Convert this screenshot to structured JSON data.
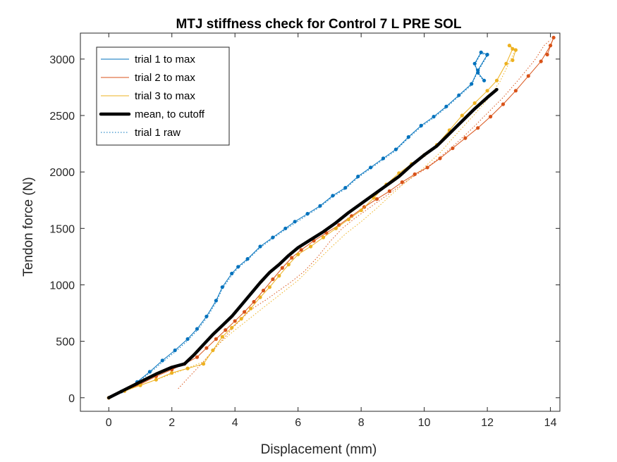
{
  "chart_data": {
    "type": "line",
    "title": "MTJ stiffness check for Control 7 L PRE SOL",
    "xlabel": "Displacement (mm)",
    "ylabel": "Tendon force (N)",
    "xlim": [
      -0.9,
      14.3
    ],
    "ylim": [
      -120,
      3230
    ],
    "xticks": [
      0,
      2,
      4,
      6,
      8,
      10,
      12,
      14
    ],
    "yticks": [
      0,
      500,
      1000,
      1500,
      2000,
      2500,
      3000
    ],
    "grid": false,
    "legend_position": "top-left",
    "colors": {
      "trial1": "#0072BD",
      "trial2": "#D95319",
      "trial3": "#EDB120",
      "mean": "#000000",
      "trial1raw": "#0072BD"
    },
    "series": [
      {
        "name": "trial 1 to max",
        "style": "solid",
        "markers": true,
        "x": [
          0,
          0.4,
          0.9,
          1.3,
          1.7,
          2.1,
          2.5,
          2.8,
          3.1,
          3.4,
          3.6,
          3.9,
          4.1,
          4.4,
          4.8,
          5.2,
          5.6,
          5.9,
          6.3,
          6.7,
          7.1,
          7.5,
          7.9,
          8.3,
          8.7,
          9.1,
          9.5,
          9.9,
          10.3,
          10.7,
          11.1,
          11.5,
          11.7,
          12.0,
          11.8,
          11.6,
          11.7,
          11.9
        ],
        "y": [
          0,
          55,
          140,
          230,
          330,
          420,
          520,
          610,
          720,
          860,
          980,
          1100,
          1160,
          1230,
          1340,
          1420,
          1500,
          1560,
          1630,
          1700,
          1790,
          1860,
          1960,
          2040,
          2120,
          2200,
          2310,
          2410,
          2490,
          2580,
          2680,
          2780,
          2900,
          3040,
          3060,
          2960,
          2880,
          2810
        ]
      },
      {
        "name": "trial 2 to max",
        "style": "solid",
        "markers": true,
        "x": [
          0,
          0.5,
          1.0,
          1.5,
          2.0,
          2.4,
          2.8,
          3.1,
          3.4,
          3.7,
          4.0,
          4.3,
          4.6,
          4.9,
          5.2,
          5.5,
          5.8,
          6.1,
          6.5,
          6.9,
          7.3,
          7.7,
          8.1,
          8.5,
          8.9,
          9.3,
          9.7,
          10.1,
          10.5,
          10.9,
          11.3,
          11.7,
          12.1,
          12.5,
          12.9,
          13.3,
          13.7,
          14.0,
          14.1,
          13.9
        ],
        "y": [
          0,
          60,
          120,
          190,
          250,
          300,
          360,
          440,
          520,
          600,
          680,
          760,
          850,
          950,
          1050,
          1150,
          1240,
          1310,
          1390,
          1460,
          1530,
          1610,
          1690,
          1760,
          1830,
          1910,
          1980,
          2040,
          2120,
          2210,
          2300,
          2390,
          2490,
          2600,
          2720,
          2850,
          2980,
          3120,
          3190,
          3040
        ]
      },
      {
        "name": "trial 3 to max",
        "style": "solid",
        "markers": true,
        "x": [
          0,
          0.5,
          1.0,
          1.5,
          2.0,
          2.5,
          3.0,
          3.3,
          3.6,
          3.9,
          4.2,
          4.5,
          4.8,
          5.1,
          5.4,
          5.7,
          6.0,
          6.4,
          6.8,
          7.2,
          7.6,
          8.0,
          8.4,
          8.8,
          9.2,
          9.6,
          10.0,
          10.4,
          10.8,
          11.2,
          11.6,
          12.0,
          12.3,
          12.6,
          12.8,
          12.7,
          12.9,
          12.8
        ],
        "y": [
          0,
          60,
          110,
          160,
          220,
          260,
          300,
          420,
          540,
          620,
          700,
          790,
          890,
          980,
          1080,
          1180,
          1270,
          1340,
          1420,
          1500,
          1580,
          1660,
          1770,
          1890,
          1990,
          2070,
          2150,
          2240,
          2370,
          2500,
          2610,
          2720,
          2810,
          2960,
          3090,
          3120,
          3080,
          2990
        ]
      },
      {
        "name": "mean, to cutoff",
        "style": "thick",
        "markers": false,
        "x": [
          0,
          0.5,
          1.0,
          1.5,
          2.0,
          2.4,
          2.7,
          3.0,
          3.3,
          3.6,
          3.9,
          4.2,
          4.5,
          4.8,
          5.1,
          5.4,
          5.7,
          6.0,
          6.4,
          6.8,
          7.2,
          7.6,
          8.0,
          8.4,
          8.8,
          9.2,
          9.6,
          10.0,
          10.4,
          10.8,
          11.2,
          11.6,
          12.0,
          12.3
        ],
        "y": [
          0,
          70,
          140,
          210,
          270,
          300,
          380,
          470,
          560,
          640,
          720,
          820,
          920,
          1020,
          1110,
          1180,
          1260,
          1330,
          1400,
          1470,
          1550,
          1640,
          1720,
          1800,
          1880,
          1960,
          2060,
          2150,
          2230,
          2340,
          2450,
          2560,
          2660,
          2730
        ]
      },
      {
        "name": "trial 1 raw",
        "style": "dotted",
        "markers": false,
        "x": [
          0,
          0.4,
          0.9,
          1.3,
          1.7,
          2.1,
          2.5,
          2.8,
          3.1,
          3.4,
          3.6,
          3.9,
          4.1,
          4.4,
          4.8,
          5.2,
          5.6,
          5.9,
          6.3,
          6.7,
          7.1,
          7.5,
          7.9,
          8.3,
          8.7,
          9.1,
          9.5,
          9.9,
          10.3,
          10.7,
          11.1,
          11.5,
          11.7,
          12.0,
          11.8,
          11.6,
          11.7,
          11.9
        ],
        "y": [
          0,
          50,
          130,
          220,
          315,
          405,
          505,
          595,
          705,
          845,
          965,
          1085,
          1150,
          1220,
          1330,
          1410,
          1490,
          1545,
          1620,
          1690,
          1780,
          1850,
          1950,
          2030,
          2110,
          2190,
          2300,
          2400,
          2480,
          2570,
          2670,
          2770,
          2890,
          3030,
          3050,
          2950,
          2870,
          2800
        ]
      },
      {
        "name": "",
        "style": "dotted",
        "markers": false,
        "color_key": "trial2",
        "x": [
          2.2,
          2.6,
          3.0,
          3.5,
          4.0,
          4.5,
          5.0,
          5.4,
          5.8,
          6.2,
          6.6,
          7.0,
          7.4,
          7.8,
          8.2,
          8.6,
          9.0,
          9.5,
          10.0,
          10.5,
          11.0,
          11.5,
          12.0,
          12.5,
          13.0,
          13.5,
          13.8,
          14.0
        ],
        "y": [
          80,
          200,
          320,
          480,
          640,
          780,
          870,
          950,
          1030,
          1120,
          1240,
          1380,
          1500,
          1590,
          1670,
          1750,
          1830,
          1930,
          2020,
          2130,
          2250,
          2380,
          2520,
          2660,
          2820,
          2990,
          3120,
          3170
        ]
      },
      {
        "name": "",
        "style": "dotted",
        "markers": false,
        "color_key": "trial3",
        "x": [
          0,
          0.8,
          1.6,
          2.3,
          3.0,
          3.5,
          4.0,
          4.5,
          5.0,
          5.5,
          6.0,
          6.5,
          7.0,
          7.5,
          8.0,
          8.5,
          9.0,
          9.5,
          10.0,
          10.5,
          11.0,
          11.5,
          12.0,
          12.4,
          12.7,
          12.9
        ],
        "y": [
          0,
          90,
          170,
          240,
          320,
          480,
          600,
          710,
          820,
          930,
          1040,
          1180,
          1320,
          1450,
          1560,
          1680,
          1810,
          1930,
          2040,
          2170,
          2330,
          2480,
          2640,
          2800,
          2970,
          3090
        ]
      }
    ]
  }
}
